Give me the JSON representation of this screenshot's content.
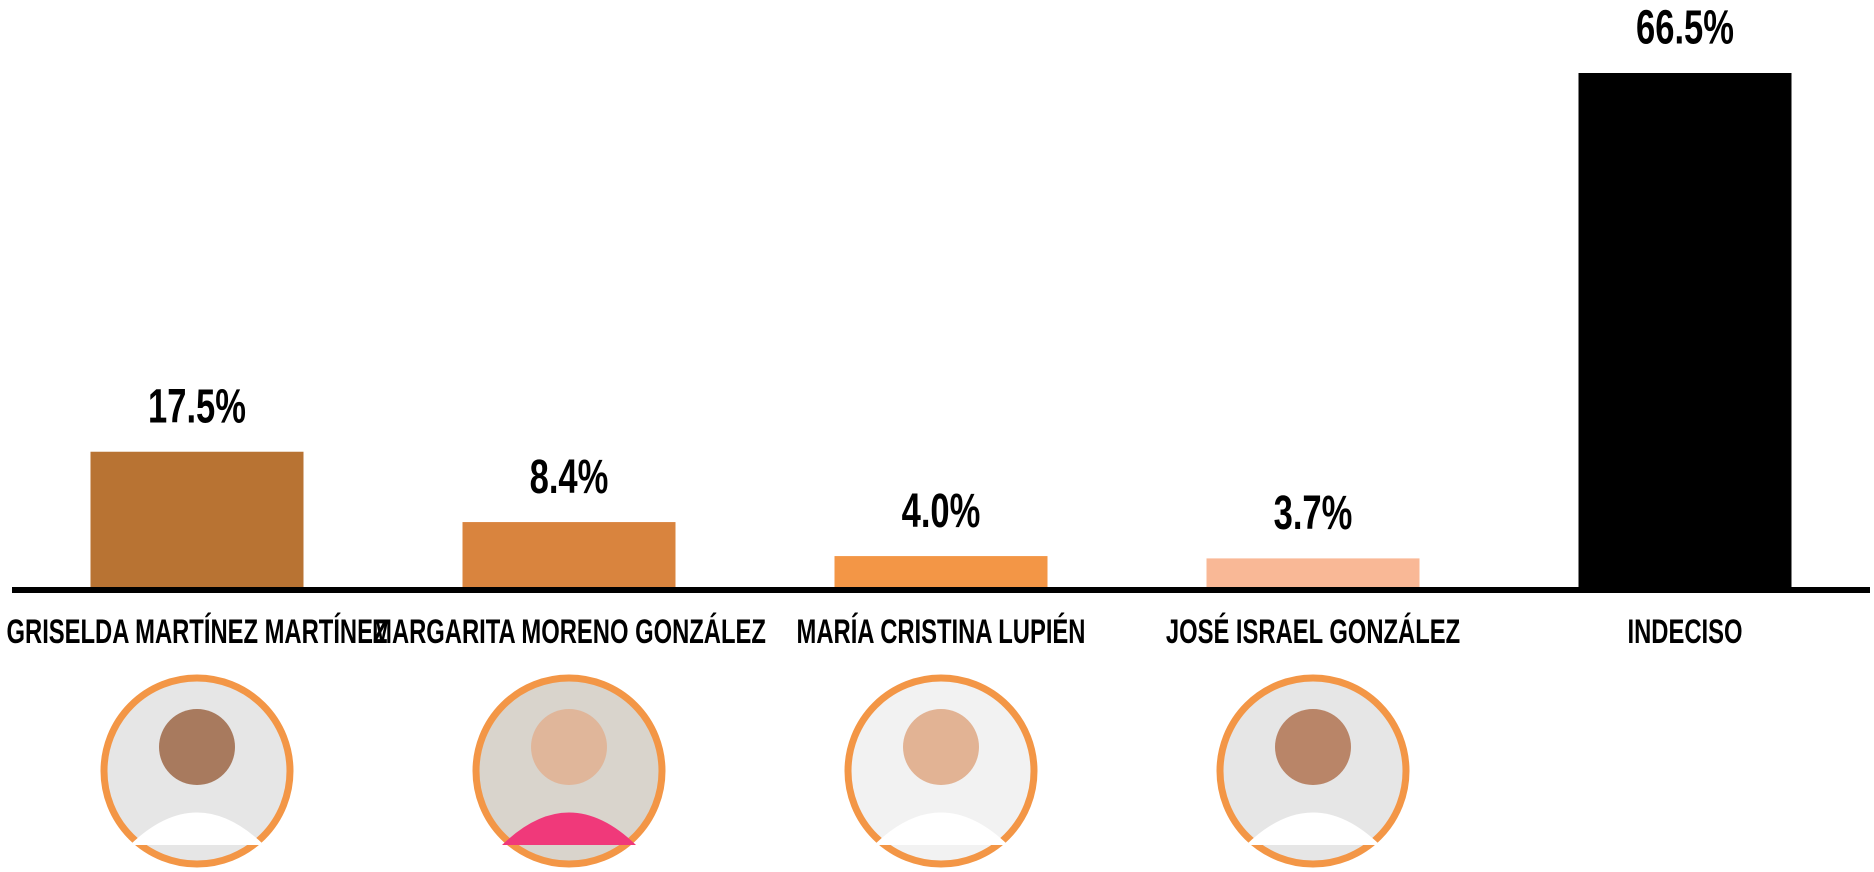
{
  "chart_data": {
    "type": "bar",
    "categories": [
      "GRISELDA MARTÍNEZ MARTÍNEZ",
      "MARGARITA MORENO GONZÁLEZ",
      "MARÍA CRISTINA LUPIÉN",
      "JOSÉ ISRAEL GONZÁLEZ",
      "INDECISO"
    ],
    "values": [
      17.5,
      8.4,
      4.0,
      3.7,
      66.5
    ],
    "value_labels": [
      "17.5%",
      "8.4%",
      "4.0%",
      "3.7%",
      "66.5%"
    ],
    "colors": [
      "#b87333",
      "#d9843e",
      "#f39646",
      "#f9b896",
      "#000000"
    ]
  }
}
